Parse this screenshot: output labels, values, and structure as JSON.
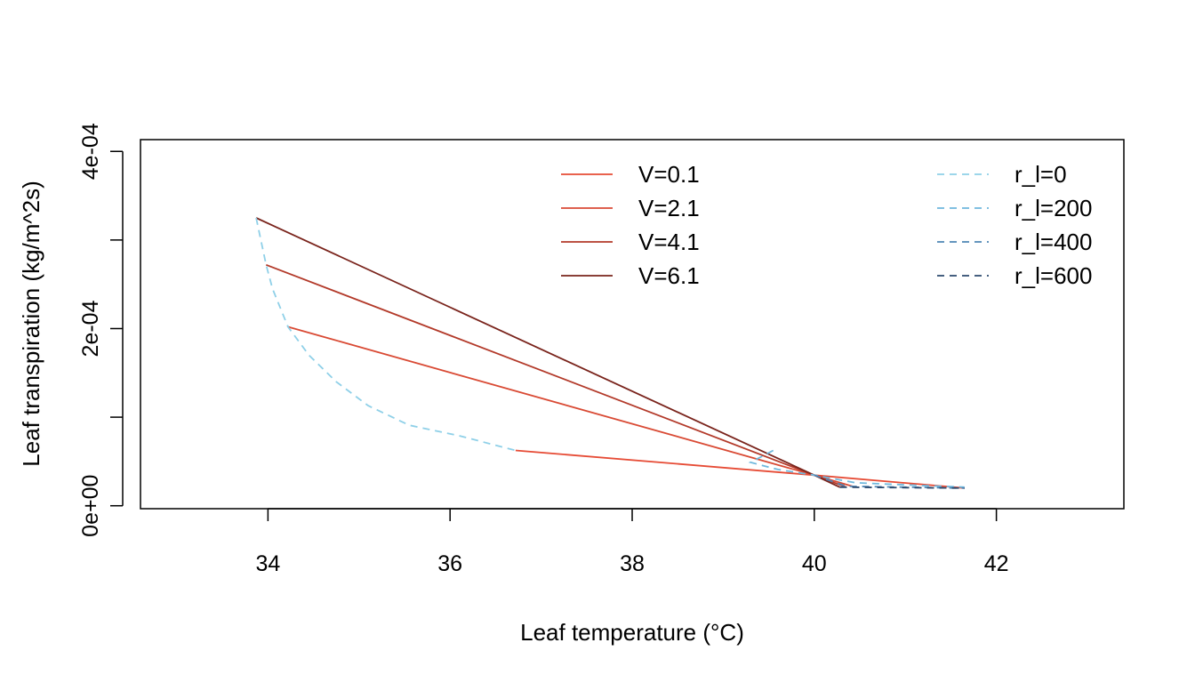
{
  "chart_data": {
    "type": "line",
    "title": "",
    "xlabel": "Leaf temperature (°C)",
    "ylabel": "Leaf transpiration (kg/m^2s)",
    "xlim": [
      32.6,
      43.4
    ],
    "ylim": [
      -3.3e-06,
      0.0004133
    ],
    "xticks": [
      {
        "value": 34,
        "label": "34"
      },
      {
        "value": 36,
        "label": "36"
      },
      {
        "value": 38,
        "label": "38"
      },
      {
        "value": 40,
        "label": "40"
      },
      {
        "value": 42,
        "label": "42"
      }
    ],
    "yticks": [
      {
        "value": 0,
        "label": "0e+00"
      },
      {
        "value": 0.0001,
        "label": ""
      },
      {
        "value": 0.0002,
        "label": "2e-04"
      },
      {
        "value": 0.0003,
        "label": ""
      },
      {
        "value": 0.0004,
        "label": "4e-04"
      }
    ],
    "series": [
      {
        "name": "V=0.1",
        "style": "solid",
        "color": "#E64B35",
        "points": [
          [
            36.72,
            6.25e-05
          ],
          [
            40.0,
            3.45e-05
          ],
          [
            41.65,
            2e-05
          ]
        ]
      },
      {
        "name": "V=2.1",
        "style": "solid",
        "color": "#D94A34",
        "points": [
          [
            34.22,
            0.000202
          ],
          [
            40.0,
            3.45e-05
          ],
          [
            40.45,
            2.1e-05
          ]
        ]
      },
      {
        "name": "V=4.1",
        "style": "solid",
        "color": "#B33A2A",
        "points": [
          [
            33.98,
            0.000272
          ],
          [
            40.0,
            3.45e-05
          ],
          [
            40.35,
            2.1e-05
          ]
        ]
      },
      {
        "name": "V=6.1",
        "style": "solid",
        "color": "#7A241C",
        "points": [
          [
            33.87,
            0.000325
          ],
          [
            40.0,
            3.45e-05
          ],
          [
            40.28,
            2.1e-05
          ]
        ]
      },
      {
        "name": "r_l=0",
        "style": "dashed",
        "color": "#8FD0E8",
        "points": [
          [
            33.87,
            0.000325
          ],
          [
            33.98,
            0.000272
          ],
          [
            34.05,
            0.000245
          ],
          [
            34.22,
            0.000202
          ],
          [
            34.45,
            0.00017
          ],
          [
            34.75,
            0.00014
          ],
          [
            35.1,
            0.000113
          ],
          [
            35.55,
            9.1e-05
          ],
          [
            36.1,
            7.9e-05
          ],
          [
            36.72,
            6.25e-05
          ]
        ]
      },
      {
        "name": "r_l=200",
        "style": "dashed",
        "color": "#6FB8DD",
        "points": [
          [
            39.55,
            6.25e-05
          ],
          [
            39.3,
            4.9e-05
          ],
          [
            39.6,
            4.1e-05
          ],
          [
            40.0,
            3.45e-05
          ],
          [
            40.45,
            2.6e-05
          ],
          [
            40.9,
            2.4e-05
          ],
          [
            41.65,
            2.1e-05
          ]
        ]
      },
      {
        "name": "r_l=400",
        "style": "dashed",
        "color": "#4F86B5",
        "points": [
          [
            40.0,
            3.45e-05
          ],
          [
            40.35,
            2.2e-05
          ],
          [
            41.0,
            2.1e-05
          ],
          [
            41.65,
            2e-05
          ]
        ]
      },
      {
        "name": "r_l=600",
        "style": "dashed",
        "color": "#2C4A6E",
        "points": [
          [
            40.28,
            2.1e-05
          ],
          [
            41.0,
            2.05e-05
          ],
          [
            41.65,
            2e-05
          ]
        ]
      }
    ],
    "legend": {
      "left_group": [
        "V=0.1",
        "V=2.1",
        "V=4.1",
        "V=6.1"
      ],
      "right_group": [
        "r_l=0",
        "r_l=200",
        "r_l=400",
        "r_l=600"
      ],
      "placement": "top, two columns"
    }
  }
}
